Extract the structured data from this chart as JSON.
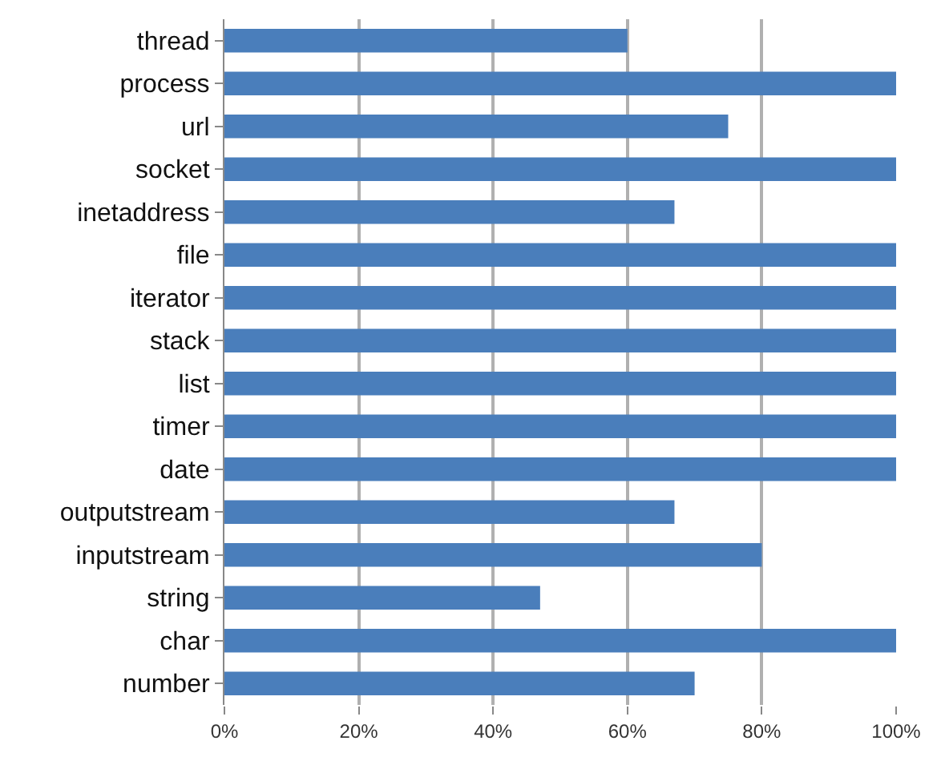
{
  "chart_data": {
    "type": "bar",
    "orientation": "horizontal",
    "categories": [
      "thread",
      "process",
      "url",
      "socket",
      "inetaddress",
      "file",
      "iterator",
      "stack",
      "list",
      "timer",
      "date",
      "outputstream",
      "inputstream",
      "string",
      "char",
      "number"
    ],
    "values": [
      60,
      100,
      75,
      100,
      67,
      100,
      100,
      100,
      100,
      100,
      100,
      67,
      80,
      47,
      100,
      70
    ],
    "color": "#4a7ebb",
    "xlim": [
      0,
      100
    ],
    "xticks": [
      {
        "value": 0,
        "label": "0%"
      },
      {
        "value": 20,
        "label": "20%"
      },
      {
        "value": 40,
        "label": "40%"
      },
      {
        "value": 60,
        "label": "60%"
      },
      {
        "value": 80,
        "label": "80%"
      },
      {
        "value": 100,
        "label": "100%"
      }
    ],
    "grid": "x"
  }
}
